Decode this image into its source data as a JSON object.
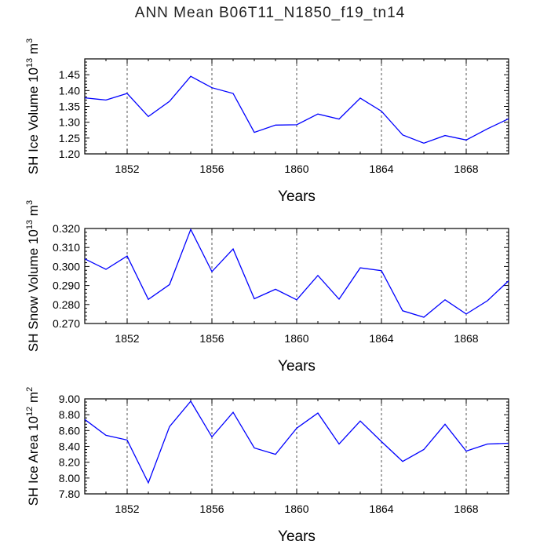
{
  "title": "ANN Mean B06T11_N1850_f19_tn14",
  "chart_data": [
    {
      "type": "line",
      "ylabel_main": "SH Ice Volume 10",
      "ylabel_exp": "13",
      "ylabel_unit": " m",
      "ylabel_unit_exp": "3",
      "xlabel": "Years",
      "xlim": [
        1850,
        1870
      ],
      "ylim": [
        1.2,
        1.5
      ],
      "yticks": [
        "1.20",
        "1.25",
        "1.30",
        "1.35",
        "1.40",
        "1.45"
      ],
      "ytick_values": [
        1.2,
        1.25,
        1.3,
        1.35,
        1.4,
        1.45
      ],
      "xticks": [
        "1852",
        "1856",
        "1860",
        "1864",
        "1868"
      ],
      "xtick_values": [
        1852,
        1856,
        1860,
        1864,
        1868
      ],
      "grid": "vertical-dashed",
      "color": "#0000ff",
      "x": [
        1850,
        1851,
        1852,
        1853,
        1854,
        1855,
        1856,
        1857,
        1858,
        1859,
        1860,
        1861,
        1862,
        1863,
        1864,
        1865,
        1866,
        1867,
        1868,
        1869,
        1870
      ],
      "values": [
        1.377,
        1.37,
        1.391,
        1.318,
        1.366,
        1.445,
        1.409,
        1.391,
        1.268,
        1.291,
        1.292,
        1.326,
        1.31,
        1.376,
        1.335,
        1.26,
        1.234,
        1.258,
        1.244,
        1.279,
        1.311
      ]
    },
    {
      "type": "line",
      "ylabel_main": "SH Snow Volume 10",
      "ylabel_exp": "13",
      "ylabel_unit": " m",
      "ylabel_unit_exp": "3",
      "xlabel": "Years",
      "xlim": [
        1850,
        1870
      ],
      "ylim": [
        0.27,
        0.32
      ],
      "yticks": [
        "0.270",
        "0.280",
        "0.290",
        "0.300",
        "0.310",
        "0.320"
      ],
      "ytick_values": [
        0.27,
        0.28,
        0.29,
        0.3,
        0.31,
        0.32
      ],
      "xticks": [
        "1852",
        "1856",
        "1860",
        "1864",
        "1868"
      ],
      "xtick_values": [
        1852,
        1856,
        1860,
        1864,
        1868
      ],
      "grid": "vertical-dashed",
      "color": "#0000ff",
      "x": [
        1850,
        1851,
        1852,
        1853,
        1854,
        1855,
        1856,
        1857,
        1858,
        1859,
        1860,
        1861,
        1862,
        1863,
        1864,
        1865,
        1866,
        1867,
        1868,
        1869,
        1870
      ],
      "values": [
        0.304,
        0.2985,
        0.3055,
        0.2827,
        0.2905,
        0.3195,
        0.2973,
        0.3092,
        0.283,
        0.288,
        0.2825,
        0.2953,
        0.2828,
        0.2993,
        0.2978,
        0.2767,
        0.2733,
        0.2825,
        0.275,
        0.282,
        0.2925
      ]
    },
    {
      "type": "line",
      "ylabel_main": "SH Ice Area 10",
      "ylabel_exp": "12",
      "ylabel_unit": " m",
      "ylabel_unit_exp": "2",
      "xlabel": "Years",
      "xlim": [
        1850,
        1870
      ],
      "ylim": [
        7.8,
        9.0
      ],
      "yticks": [
        "7.80",
        "8.00",
        "8.20",
        "8.40",
        "8.60",
        "8.80",
        "9.00"
      ],
      "ytick_values": [
        7.8,
        8.0,
        8.2,
        8.4,
        8.6,
        8.8,
        9.0
      ],
      "xticks": [
        "1852",
        "1856",
        "1860",
        "1864",
        "1868"
      ],
      "xtick_values": [
        1852,
        1856,
        1860,
        1864,
        1868
      ],
      "grid": "vertical-dashed",
      "color": "#0000ff",
      "x": [
        1850,
        1851,
        1852,
        1853,
        1854,
        1855,
        1856,
        1857,
        1858,
        1859,
        1860,
        1861,
        1862,
        1863,
        1864,
        1865,
        1866,
        1867,
        1868,
        1869,
        1870
      ],
      "values": [
        8.74,
        8.54,
        8.48,
        7.94,
        8.65,
        8.97,
        8.52,
        8.83,
        8.38,
        8.3,
        8.63,
        8.82,
        8.43,
        8.72,
        8.46,
        8.21,
        8.36,
        8.68,
        8.34,
        8.43,
        8.44
      ]
    }
  ]
}
